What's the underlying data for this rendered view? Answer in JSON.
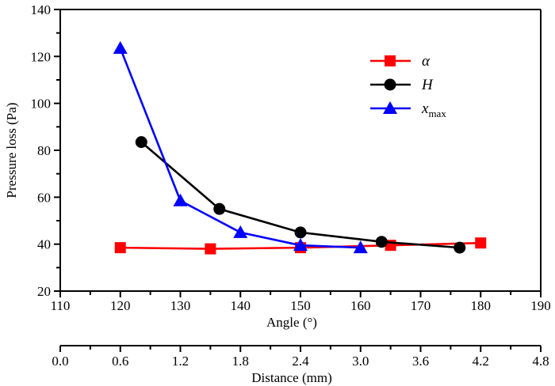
{
  "chart_data": {
    "type": "line",
    "title": "",
    "ylabel": "Pressure loss (Pa)",
    "xlabel": "Angle (°)",
    "x2label": "Distance (mm)",
    "xlim": [
      110,
      190
    ],
    "x2lim": [
      0.0,
      4.8
    ],
    "ylim": [
      20,
      140
    ],
    "xticks": [
      "110",
      "120",
      "130",
      "140",
      "150",
      "160",
      "170",
      "180",
      "190"
    ],
    "x2ticks": [
      "0.0",
      "0.6",
      "1.2",
      "1.8",
      "2.4",
      "3.0",
      "3.6",
      "4.2",
      "4.8"
    ],
    "yticks": [
      "20",
      "40",
      "60",
      "80",
      "100",
      "120",
      "140"
    ],
    "grid": false,
    "legend_position": "top-right",
    "series": [
      {
        "name": "α",
        "name_sub": "",
        "color": "#ff0000",
        "marker": "square",
        "x": [
          120,
          135,
          150,
          165,
          180
        ],
        "y": [
          38.5,
          38.0,
          38.5,
          39.5,
          40.5
        ]
      },
      {
        "name": "H",
        "name_sub": "",
        "color": "#000000",
        "marker": "circle",
        "x": [
          123.5,
          136.5,
          150,
          163.5,
          176.5
        ],
        "y": [
          83.5,
          55.0,
          45.0,
          41.0,
          38.5
        ]
      },
      {
        "name": "x",
        "name_sub": "max",
        "color": "#0000ff",
        "marker": "triangle",
        "x": [
          120,
          130,
          140,
          150,
          160
        ],
        "y": [
          123.5,
          58.5,
          45.0,
          39.5,
          38.5
        ]
      }
    ]
  }
}
